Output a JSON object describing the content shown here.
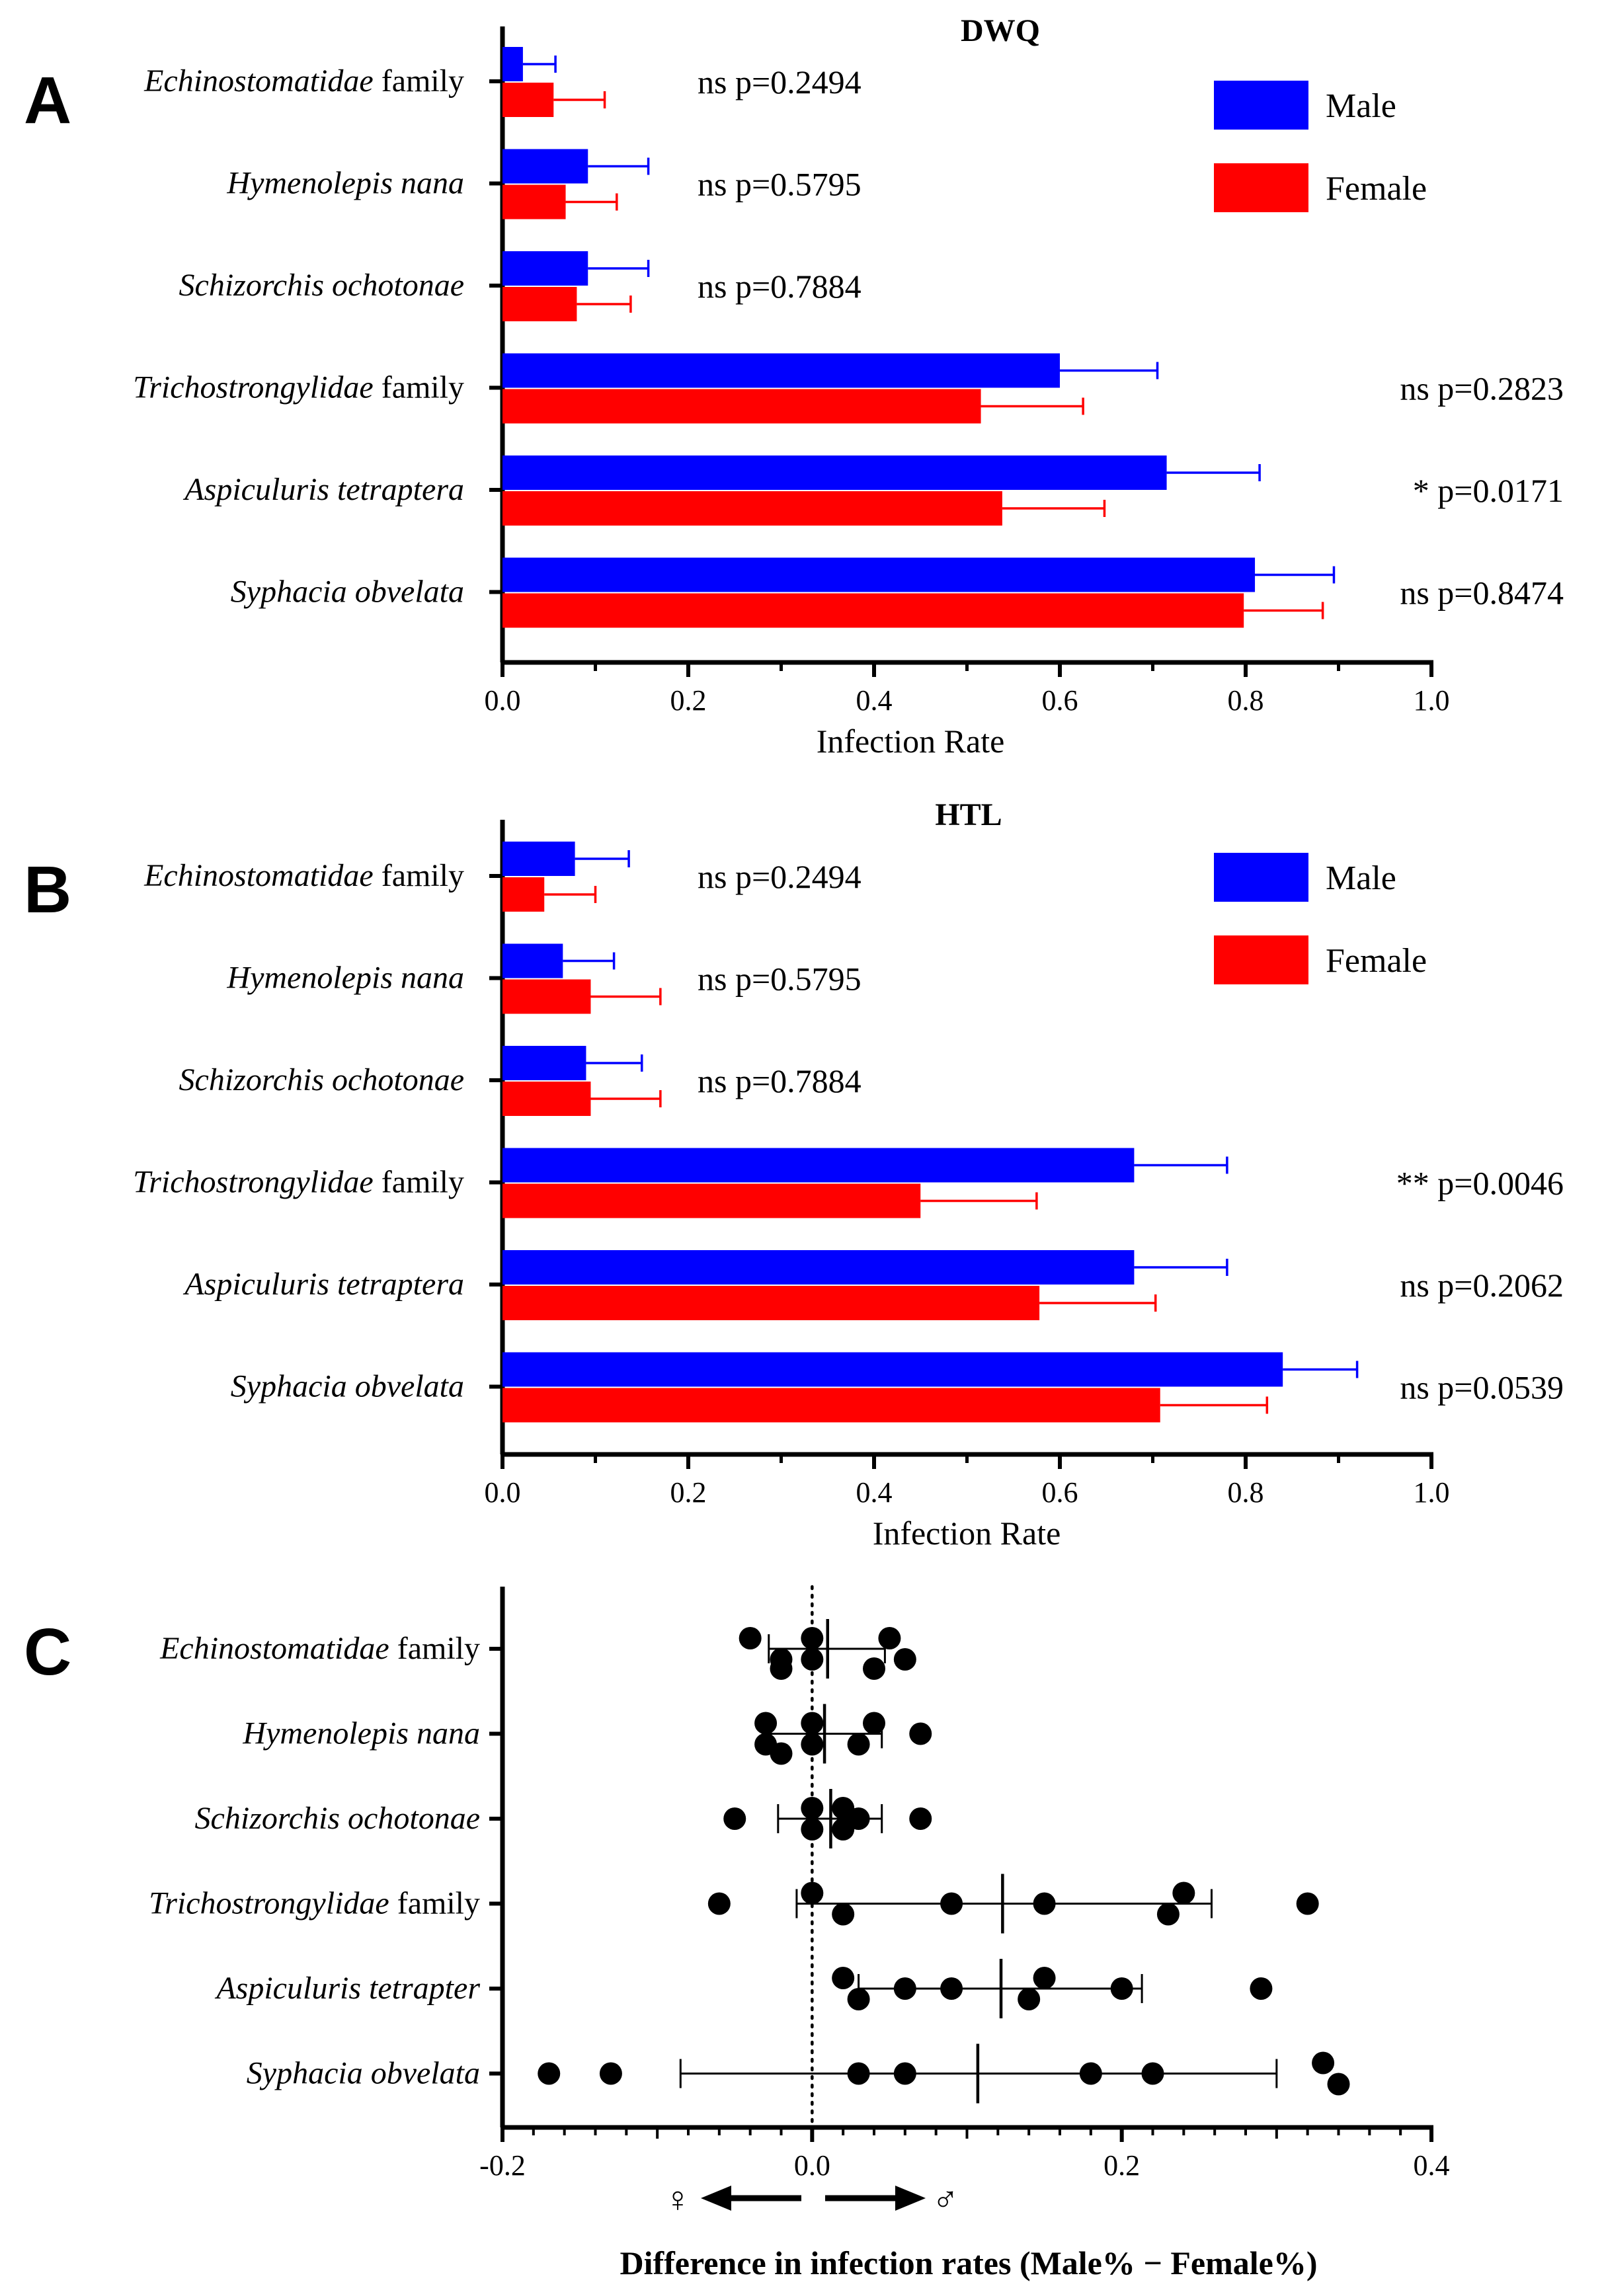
{
  "chart_data": [
    {
      "panel": "A",
      "type": "bar",
      "orientation": "horizontal",
      "title": "DWQ",
      "xlabel": "Infection Rate",
      "xlim": [
        0,
        1.0
      ],
      "xticks": [
        "0.0",
        "0.2",
        "0.4",
        "0.6",
        "0.8",
        "1.0"
      ],
      "categories": [
        {
          "italic": "Echinostomatidae",
          "plain": " family"
        },
        {
          "italic": "Hymenolepis nana",
          "plain": ""
        },
        {
          "italic": "Schizorchis ochotonae",
          "plain": ""
        },
        {
          "italic": "Trichostrongylidae",
          "plain": " family"
        },
        {
          "italic": "Aspiculuris tetraptera",
          "plain": ""
        },
        {
          "italic": "Syphacia obvelata",
          "plain": ""
        }
      ],
      "series": [
        {
          "name": "Male",
          "color": "#0000ff",
          "values": [
            0.022,
            0.092,
            0.092,
            0.6,
            0.715,
            0.81
          ],
          "errors": [
            0.035,
            0.065,
            0.065,
            0.105,
            0.1,
            0.085
          ]
        },
        {
          "name": "Female",
          "color": "#ff0000",
          "values": [
            0.055,
            0.068,
            0.08,
            0.515,
            0.538,
            0.798
          ],
          "errors": [
            0.055,
            0.055,
            0.058,
            0.11,
            0.11,
            0.085
          ]
        }
      ],
      "pvalues": [
        "ns p=0.2494",
        "ns p=0.5795",
        "ns p=0.7884",
        "ns p=0.2823",
        "* p=0.0171",
        "ns p=0.8474"
      ],
      "legend_position": "top-right"
    },
    {
      "panel": "B",
      "type": "bar",
      "orientation": "horizontal",
      "title": "HTL",
      "xlabel": "Infection Rate",
      "xlim": [
        0,
        1.0
      ],
      "xticks": [
        "0.0",
        "0.2",
        "0.4",
        "0.6",
        "0.8",
        "1.0"
      ],
      "categories": [
        {
          "italic": "Echinostomatidae",
          "plain": " family"
        },
        {
          "italic": "Hymenolepis nana",
          "plain": ""
        },
        {
          "italic": "Schizorchis ochotonae",
          "plain": ""
        },
        {
          "italic": "Trichostrongylidae",
          "plain": " family"
        },
        {
          "italic": "Aspiculuris tetraptera",
          "plain": ""
        },
        {
          "italic": "Syphacia obvelata",
          "plain": ""
        }
      ],
      "series": [
        {
          "name": "Male",
          "color": "#0000ff",
          "values": [
            0.078,
            0.065,
            0.09,
            0.68,
            0.68,
            0.84
          ],
          "errors": [
            0.058,
            0.055,
            0.06,
            0.1,
            0.1,
            0.08
          ]
        },
        {
          "name": "Female",
          "color": "#ff0000",
          "values": [
            0.045,
            0.095,
            0.095,
            0.45,
            0.578,
            0.708
          ],
          "errors": [
            0.055,
            0.075,
            0.075,
            0.125,
            0.125,
            0.115
          ]
        }
      ],
      "pvalues": [
        "ns p=0.2494",
        "ns p=0.5795",
        "ns p=0.7884",
        "** p=0.0046",
        "ns p=0.2062",
        "ns p=0.0539"
      ],
      "legend_position": "top-right"
    },
    {
      "panel": "C",
      "type": "scatter",
      "xlabel": "Difference in infection rates (Male% − Female%)",
      "xlim": [
        -0.2,
        0.4
      ],
      "xticks": [
        "-0.2",
        "0.0",
        "0.2",
        "0.4"
      ],
      "reference_line": 0.0,
      "direction_labels": {
        "left": "♀",
        "right": "♂"
      },
      "categories": [
        {
          "italic": "Echinostomatidae",
          "plain": " family"
        },
        {
          "italic": "Hymenolepis nana",
          "plain": ""
        },
        {
          "italic": "Schizorchis ochotonae",
          "plain": ""
        },
        {
          "italic": "Trichostrongylidae",
          "plain": " family"
        },
        {
          "italic": "Aspiculuris tetrapter",
          "plain": ""
        },
        {
          "italic": "Syphacia obvelata",
          "plain": ""
        }
      ],
      "points": [
        [
          [
            -0.04,
            -0.016
          ],
          [
            -0.02,
            0.016
          ],
          [
            0.0,
            -0.016
          ],
          [
            0.0,
            0.016
          ],
          [
            0.05,
            -0.016
          ],
          [
            0.06,
            0.016
          ],
          [
            -0.02,
            0.03
          ],
          [
            0.04,
            0.03
          ]
        ],
        [
          [
            -0.03,
            -0.016
          ],
          [
            -0.03,
            0.016
          ],
          [
            -0.02,
            0.03
          ],
          [
            0.0,
            -0.016
          ],
          [
            0.0,
            0.016
          ],
          [
            0.03,
            0.016
          ],
          [
            0.04,
            -0.016
          ],
          [
            0.07,
            0.0
          ]
        ],
        [
          [
            -0.05,
            0.0
          ],
          [
            0.0,
            -0.016
          ],
          [
            0.0,
            0.016
          ],
          [
            0.02,
            -0.016
          ],
          [
            0.02,
            0.016
          ],
          [
            0.03,
            0.0
          ],
          [
            0.07,
            0.0
          ]
        ],
        [
          [
            -0.06,
            0.0
          ],
          [
            0.0,
            -0.016
          ],
          [
            0.02,
            0.016
          ],
          [
            0.09,
            0.0
          ],
          [
            0.15,
            0.0
          ],
          [
            0.23,
            0.016
          ],
          [
            0.24,
            -0.016
          ],
          [
            0.32,
            0.0
          ]
        ],
        [
          [
            0.02,
            -0.016
          ],
          [
            0.03,
            0.016
          ],
          [
            0.06,
            0.0
          ],
          [
            0.09,
            0.0
          ],
          [
            0.14,
            0.016
          ],
          [
            0.15,
            -0.016
          ],
          [
            0.2,
            0.0
          ],
          [
            0.29,
            0.0
          ]
        ],
        [
          [
            -0.17,
            0.0
          ],
          [
            -0.13,
            0.0
          ],
          [
            0.03,
            0.0
          ],
          [
            0.06,
            0.0
          ],
          [
            0.18,
            0.0
          ],
          [
            0.22,
            0.0
          ],
          [
            0.33,
            -0.016
          ],
          [
            0.34,
            0.016
          ]
        ]
      ],
      "means": [
        0.01,
        0.008,
        0.012,
        0.123,
        0.122,
        0.107
      ],
      "error_low": [
        -0.028,
        -0.028,
        -0.022,
        -0.01,
        0.03,
        -0.085
      ],
      "error_high": [
        0.047,
        0.045,
        0.045,
        0.258,
        0.213,
        0.3
      ]
    }
  ]
}
